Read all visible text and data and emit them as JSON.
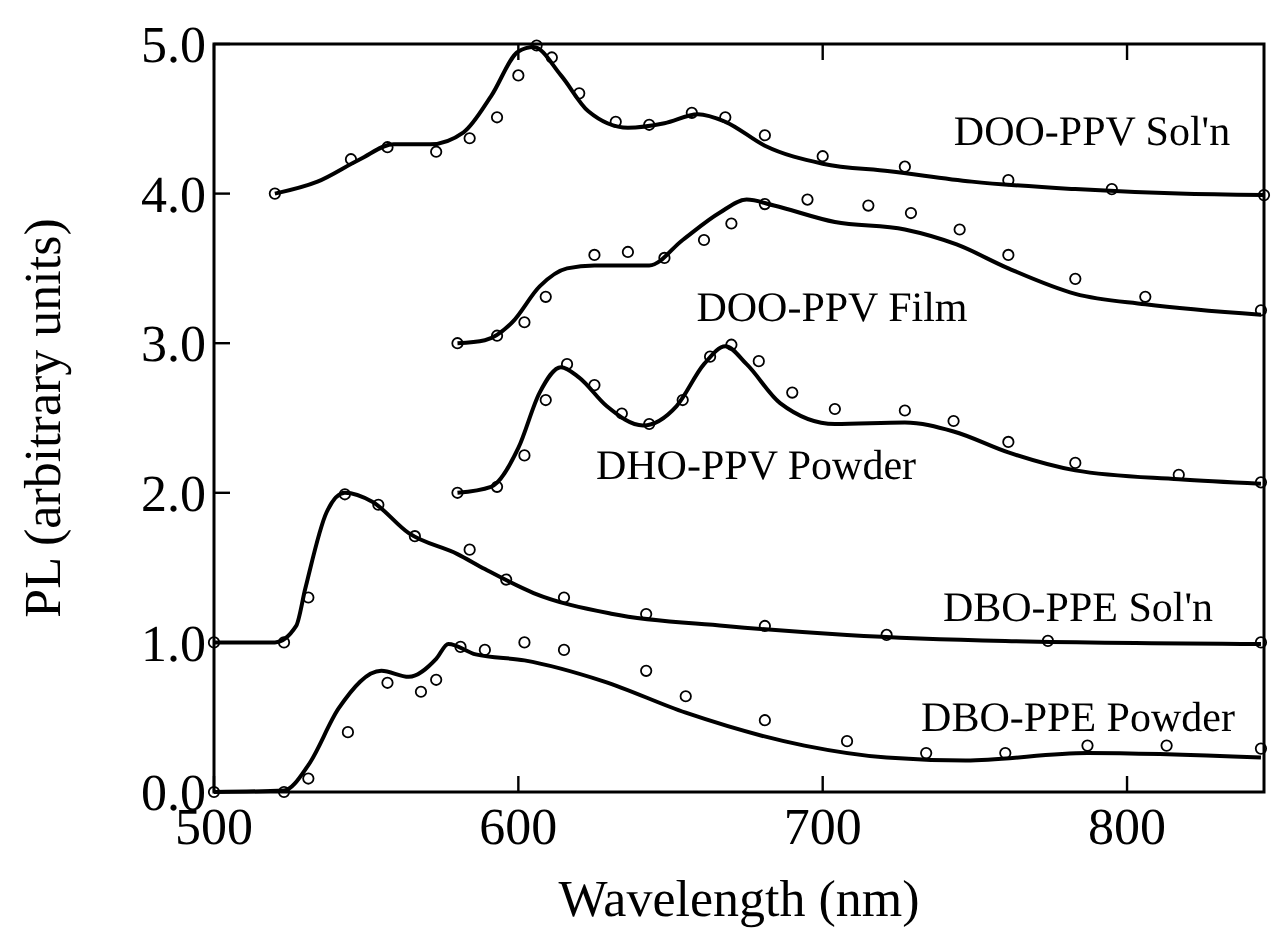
{
  "chart_data": {
    "type": "line",
    "xlabel": "Wavelength (nm)",
    "ylabel": "PL (arbitrary units)",
    "xlim": [
      500,
      845
    ],
    "ylim": [
      0,
      5
    ],
    "xticks": [
      500,
      600,
      700,
      800
    ],
    "yticks": [
      {
        "value": 0,
        "label": "0.0"
      },
      {
        "value": 1,
        "label": "1.0"
      },
      {
        "value": 2,
        "label": "2.0"
      },
      {
        "value": 3,
        "label": "3.0"
      },
      {
        "value": 4,
        "label": "4.0"
      },
      {
        "value": 5,
        "label": "5.0"
      }
    ],
    "grid": false,
    "annotations": [
      "DOO-PPV Sol'n",
      "DOO-PPV Film",
      "DHO-PPV Powder",
      "DBO-PPE Sol'n",
      "DBO-PPE Powder"
    ],
    "series": [
      {
        "color": "#000000",
        "x": [
          520,
          534,
          548,
          559,
          571,
          582,
          591,
          600,
          605,
          614,
          623,
          636,
          648,
          659,
          668,
          681,
          700,
          722,
          749,
          783,
          817,
          845
        ],
        "values": [
          4.0,
          4.08,
          4.23,
          4.33,
          4.33,
          4.41,
          4.65,
          4.95,
          4.98,
          4.79,
          4.55,
          4.44,
          4.47,
          4.53,
          4.48,
          4.32,
          4.2,
          4.15,
          4.08,
          4.03,
          4.0,
          3.99
        ]
      },
      {
        "type": "scatter",
        "color": "#000000",
        "x": [
          520,
          545,
          557,
          573,
          584,
          593,
          600,
          606,
          611,
          620,
          632,
          643,
          657,
          668,
          681,
          700,
          727,
          761,
          795,
          845
        ],
        "values": [
          4.0,
          4.23,
          4.31,
          4.28,
          4.37,
          4.51,
          4.79,
          4.99,
          4.91,
          4.67,
          4.48,
          4.46,
          4.54,
          4.51,
          4.39,
          4.25,
          4.18,
          4.09,
          4.03,
          3.99
        ]
      },
      {
        "color": "#000000",
        "x": [
          580,
          589,
          598,
          607,
          616,
          625,
          643,
          654,
          666,
          675,
          684,
          704,
          727,
          744,
          761,
          783,
          806,
          844
        ],
        "values": [
          3.0,
          3.02,
          3.14,
          3.38,
          3.5,
          3.52,
          3.52,
          3.69,
          3.87,
          3.96,
          3.92,
          3.81,
          3.76,
          3.66,
          3.5,
          3.33,
          3.26,
          3.19
        ]
      },
      {
        "type": "scatter",
        "color": "#000000",
        "x": [
          580,
          593,
          602,
          609,
          625,
          636,
          648,
          661,
          670,
          681,
          695,
          715,
          729,
          745,
          761,
          783,
          806,
          844
        ],
        "values": [
          3.0,
          3.05,
          3.14,
          3.31,
          3.59,
          3.61,
          3.57,
          3.69,
          3.8,
          3.93,
          3.96,
          3.92,
          3.87,
          3.76,
          3.59,
          3.43,
          3.31,
          3.22
        ]
      },
      {
        "color": "#000000",
        "x": [
          580,
          591,
          600,
          607,
          614,
          620,
          629,
          641,
          652,
          661,
          668,
          675,
          686,
          704,
          727,
          743,
          761,
          783,
          817,
          844
        ],
        "values": [
          2.0,
          2.04,
          2.3,
          2.67,
          2.84,
          2.77,
          2.58,
          2.45,
          2.58,
          2.86,
          2.98,
          2.86,
          2.6,
          2.46,
          2.47,
          2.41,
          2.27,
          2.15,
          2.09,
          2.06
        ]
      },
      {
        "type": "scatter",
        "color": "#000000",
        "x": [
          580,
          593,
          602,
          609,
          616,
          625,
          634,
          643,
          654,
          663,
          670,
          679,
          690,
          704,
          727,
          743,
          761,
          783,
          817,
          844
        ],
        "values": [
          2.0,
          2.04,
          2.25,
          2.62,
          2.86,
          2.72,
          2.53,
          2.46,
          2.62,
          2.91,
          2.99,
          2.88,
          2.67,
          2.56,
          2.55,
          2.48,
          2.34,
          2.2,
          2.12,
          2.07
        ]
      },
      {
        "color": "#000000",
        "x": [
          500,
          520,
          527,
          530,
          537,
          543,
          552,
          564,
          580,
          589,
          605,
          631,
          668,
          708,
          760,
          844
        ],
        "values": [
          1.0,
          1.0,
          1.11,
          1.36,
          1.87,
          2.0,
          1.94,
          1.73,
          1.59,
          1.49,
          1.33,
          1.19,
          1.11,
          1.05,
          1.01,
          0.99
        ]
      },
      {
        "type": "scatter",
        "color": "#000000",
        "x": [
          500,
          523,
          531,
          543,
          554,
          566,
          584,
          596,
          615,
          642,
          681,
          721,
          774,
          844
        ],
        "values": [
          1.0,
          1.0,
          1.3,
          1.99,
          1.92,
          1.71,
          1.62,
          1.42,
          1.3,
          1.19,
          1.11,
          1.05,
          1.01,
          1.0
        ]
      },
      {
        "color": "#000000",
        "x": [
          500,
          523,
          531,
          541,
          555,
          564,
          573,
          577,
          586,
          602,
          628,
          655,
          694,
          721,
          747,
          787,
          844
        ],
        "values": [
          0,
          0.01,
          0.18,
          0.56,
          0.81,
          0.77,
          0.89,
          0.99,
          0.92,
          0.88,
          0.74,
          0.53,
          0.31,
          0.23,
          0.21,
          0.26,
          0.23
        ]
      },
      {
        "type": "scatter",
        "color": "#000000",
        "x": [
          500,
          523,
          531,
          544,
          557,
          568,
          573,
          581,
          589,
          602,
          615,
          642,
          655,
          681,
          708,
          734,
          760,
          787,
          813,
          844
        ],
        "values": [
          0,
          0,
          0.09,
          0.4,
          0.73,
          0.67,
          0.75,
          0.97,
          0.95,
          1.0,
          0.95,
          0.81,
          0.64,
          0.48,
          0.34,
          0.26,
          0.26,
          0.31,
          0.31,
          0.29
        ]
      }
    ]
  }
}
